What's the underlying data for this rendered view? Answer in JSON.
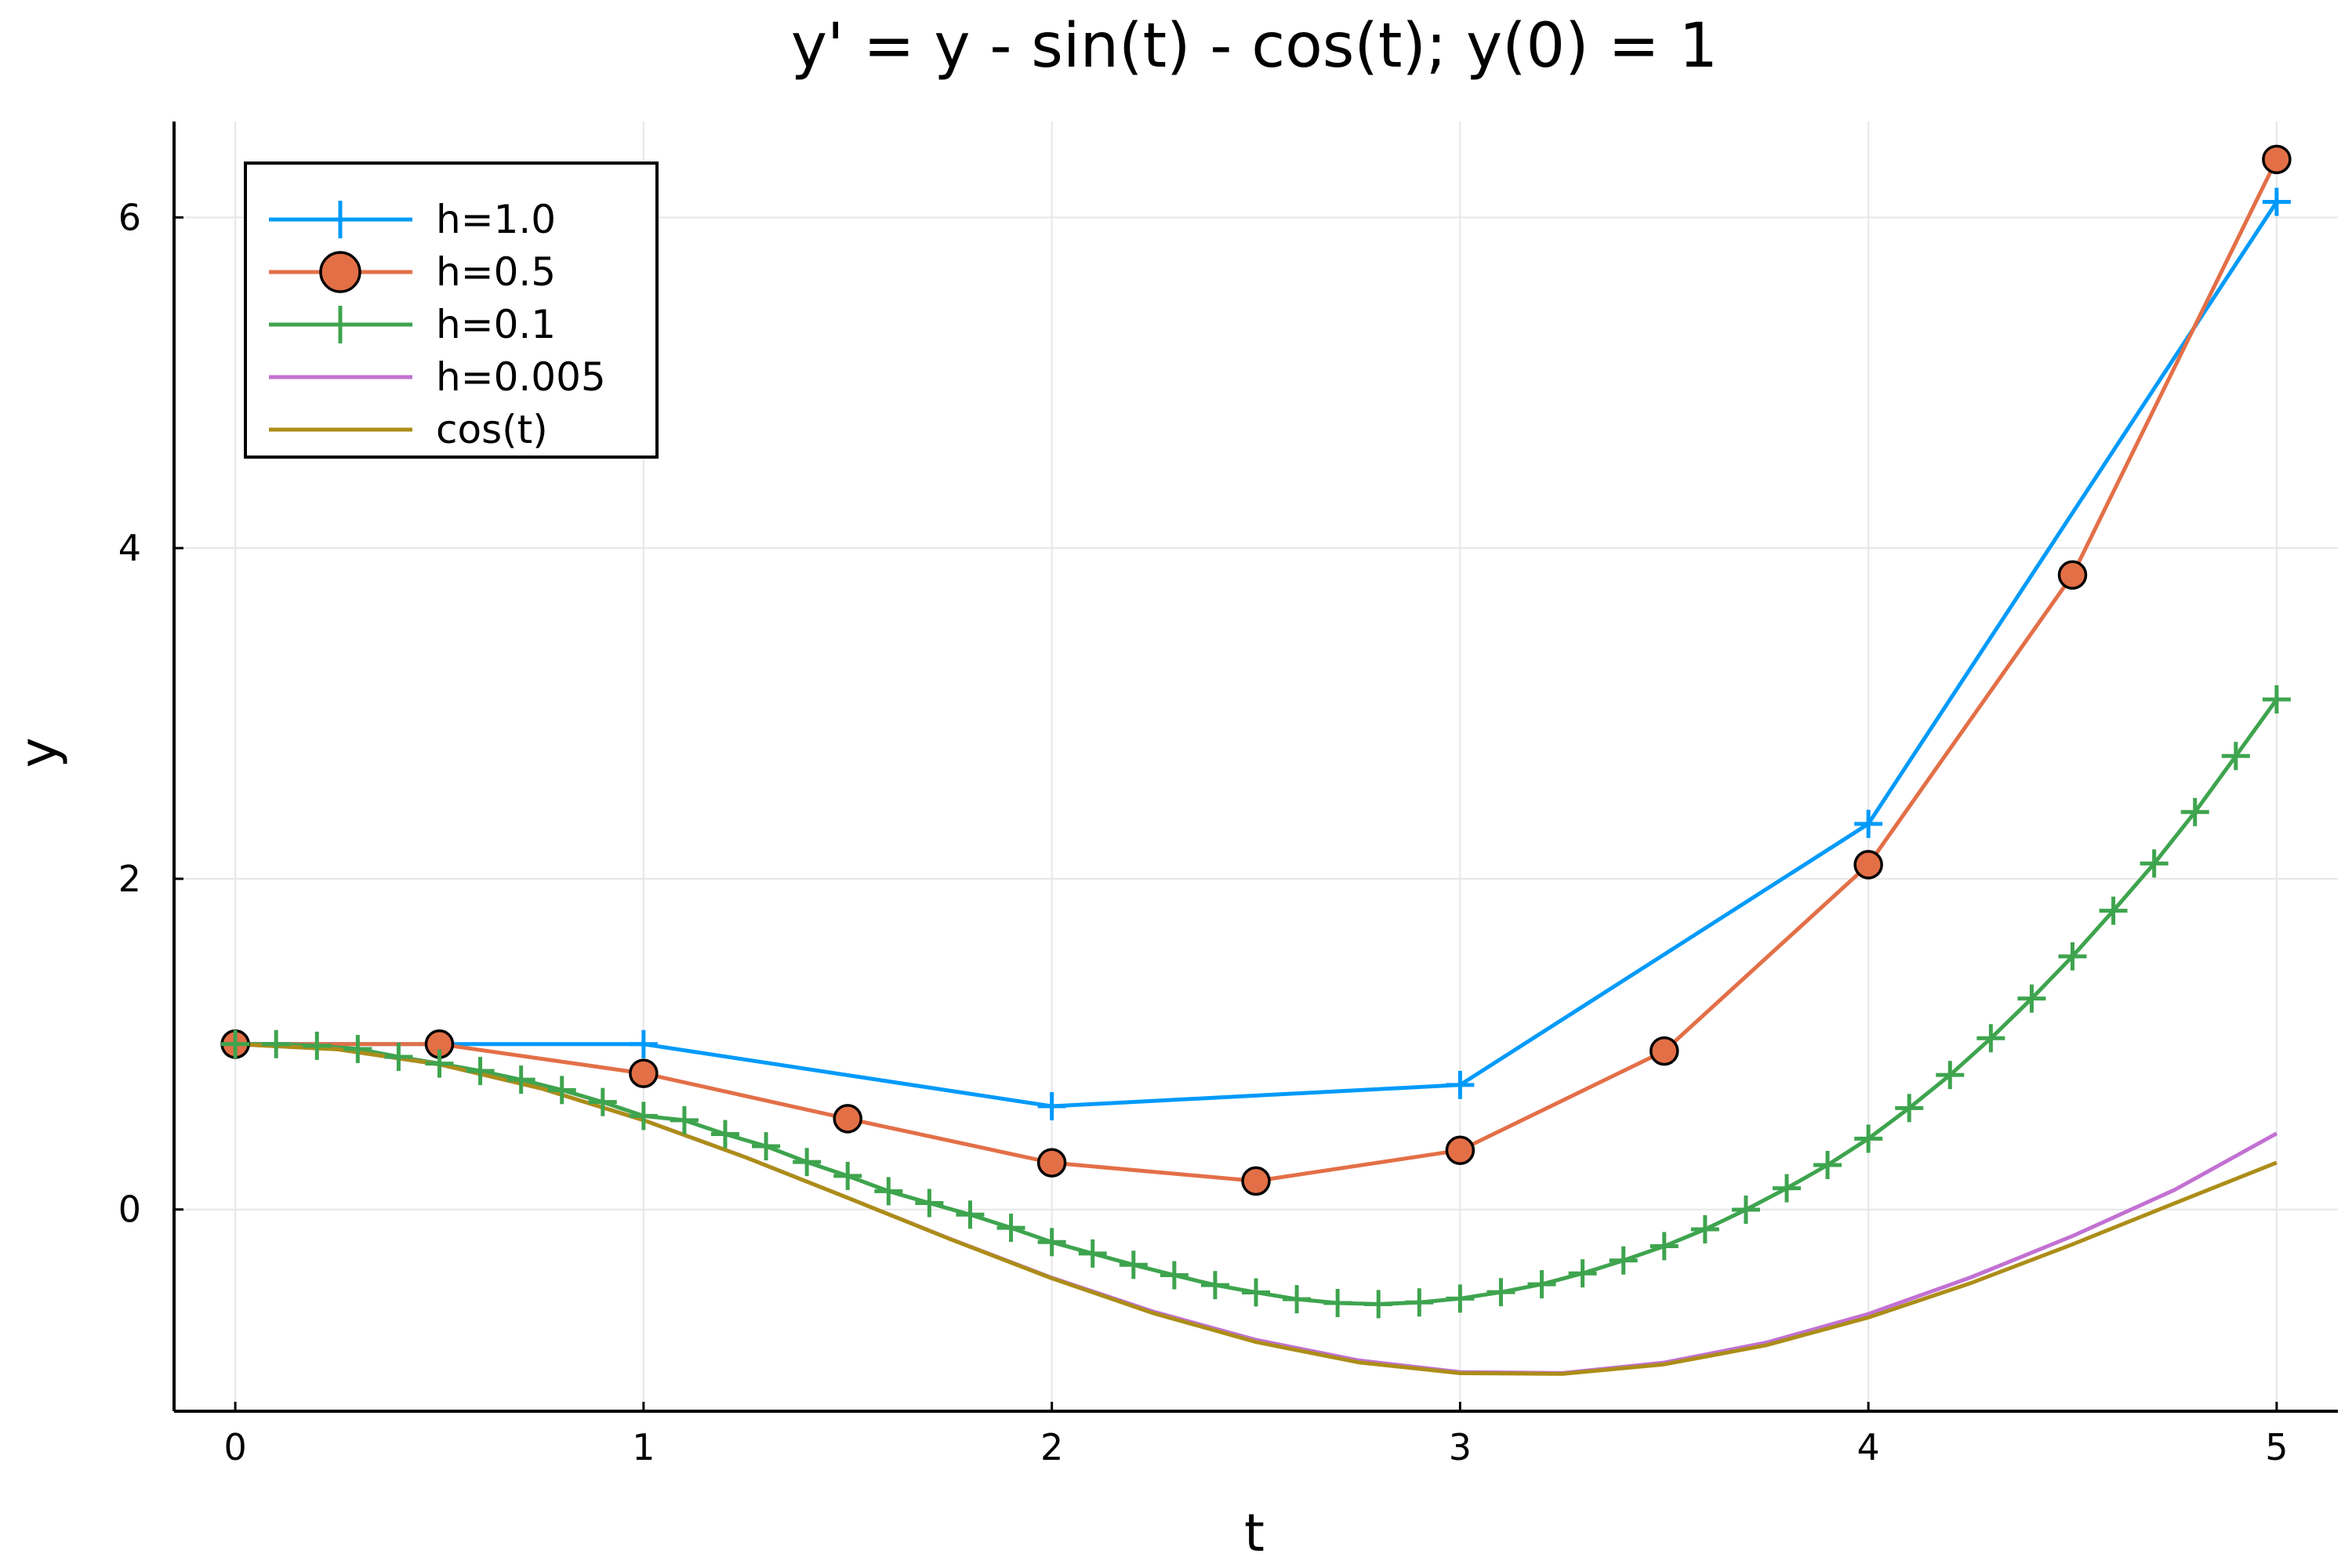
{
  "chart_data": {
    "type": "line",
    "title": "y' = y - sin(t) - cos(t); y(0) = 1",
    "xlabel": "t",
    "ylabel": "y",
    "xlim": [
      -0.15,
      5.15
    ],
    "ylim": [
      -1.22,
      6.58
    ],
    "xticks": [
      0,
      1,
      2,
      3,
      4,
      5
    ],
    "yticks": [
      0,
      2,
      4,
      6
    ],
    "grid": true,
    "legend_position": "top-left",
    "series": [
      {
        "name": "h=1.0",
        "color": "#009AFA",
        "marker": "cross",
        "x": [
          0,
          1,
          2,
          3,
          4,
          5
        ],
        "y": [
          1.0,
          1.0,
          0.6244,
          0.7534,
          2.3322,
          6.0942
        ]
      },
      {
        "name": "h=0.5",
        "color": "#E36F47",
        "marker": "circle",
        "x": [
          0,
          0.5,
          1.0,
          1.5,
          2.0,
          2.5,
          3.0,
          3.5,
          4.0,
          4.5,
          5.0
        ],
        "y": [
          1.0,
          1.0,
          0.8232,
          0.5493,
          0.2824,
          0.172,
          0.3578,
          0.9582,
          2.0856,
          3.8375,
          6.3508
        ]
      },
      {
        "name": "h=0.1",
        "color": "#3EA44E",
        "marker": "cross",
        "x": [
          0,
          0.1,
          0.2,
          0.3,
          0.4,
          0.5,
          0.6,
          0.7,
          0.8,
          0.9,
          1.0,
          1.1,
          1.2,
          1.3,
          1.4,
          1.5,
          1.6,
          1.7,
          1.8,
          1.9,
          2.0,
          2.1,
          2.2,
          2.3,
          2.4,
          2.5,
          2.6,
          2.7,
          2.8,
          2.9,
          3.0,
          3.1,
          3.2,
          3.3,
          3.4,
          3.5,
          3.6,
          3.7,
          3.8,
          3.9,
          4.0,
          4.1,
          4.2,
          4.3,
          4.4,
          4.5,
          4.6,
          4.7,
          4.8,
          4.9,
          5.0
        ],
        "y": [
          1.0,
          1.0,
          0.99,
          0.9705,
          0.9233,
          0.8825,
          0.8377,
          0.7849,
          0.7225,
          0.6497,
          0.5659,
          0.5395,
          0.4559,
          0.3825,
          0.287,
          0.2029,
          0.1107,
          0.0391,
          -0.0312,
          -0.1108,
          -0.1972,
          -0.2665,
          -0.3345,
          -0.3976,
          -0.4573,
          -0.5015,
          -0.5426,
          -0.5656,
          -0.5725,
          -0.5619,
          -0.5388,
          -0.5001,
          -0.4524,
          -0.3864,
          -0.3082,
          -0.2217,
          -0.1199,
          -0.0012,
          0.1286,
          0.2691,
          0.4281,
          0.6135,
          0.8133,
          1.0357,
          1.2756,
          1.531,
          1.8069,
          2.0926,
          2.4036,
          2.7426,
          3.0851
        ]
      },
      {
        "name": "h=0.005",
        "color": "#C271D2",
        "marker": "none",
        "x": [
          0,
          0.25,
          0.5,
          0.75,
          1.0,
          1.25,
          1.5,
          1.75,
          2.0,
          2.25,
          2.5,
          2.75,
          3.0,
          3.25,
          3.5,
          3.75,
          4.0,
          4.25,
          4.5,
          4.75,
          5.0
        ],
        "y": [
          1.0,
          0.969,
          0.8776,
          0.7318,
          0.5403,
          0.3153,
          0.0709,
          -0.1775,
          -0.4131,
          -0.6189,
          -0.7885,
          -0.9124,
          -0.9834,
          -0.9894,
          -0.9262,
          -0.8052,
          -0.6318,
          -0.4115,
          -0.1608,
          0.1188,
          0.4598
        ]
      },
      {
        "name": "cos(t)",
        "color": "#AC8D18",
        "marker": "none",
        "x": [
          0,
          0.25,
          0.5,
          0.75,
          1.0,
          1.25,
          1.5,
          1.75,
          2.0,
          2.25,
          2.5,
          2.75,
          3.0,
          3.25,
          3.5,
          3.75,
          4.0,
          4.25,
          4.5,
          4.75,
          5.0
        ],
        "y": [
          1.0,
          0.9689,
          0.8776,
          0.7317,
          0.5403,
          0.3153,
          0.0707,
          -0.1782,
          -0.4161,
          -0.6282,
          -0.8011,
          -0.9243,
          -0.99,
          -0.9941,
          -0.9365,
          -0.8206,
          -0.6536,
          -0.4461,
          -0.2108,
          0.0376,
          0.2837
        ]
      }
    ]
  }
}
